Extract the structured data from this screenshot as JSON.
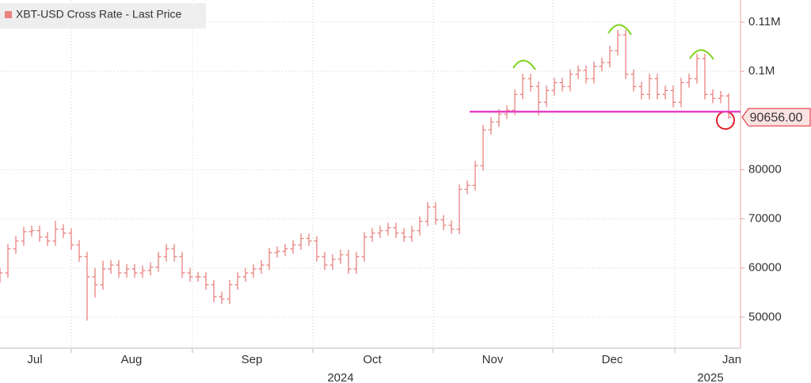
{
  "chart_data": {
    "type": "ohlc",
    "title": "XBT-USD Cross Rate - Last Price",
    "color": "#e8837f",
    "open": [
      58000,
      59000,
      63900,
      65500,
      67400,
      67600,
      66300,
      65500,
      67900,
      67100,
      64700,
      62300,
      58200,
      56600,
      59800,
      60600,
      59000,
      59800,
      59000,
      59500,
      60200,
      62300,
      63900,
      62300,
      59000,
      58200,
      58200,
      56600,
      54200,
      53700,
      56600,
      58200,
      59000,
      59800,
      60600,
      63100,
      63400,
      63900,
      64700,
      66000,
      65500,
      62300,
      60600,
      61800,
      62700,
      59800,
      62300,
      66300,
      67100,
      67600,
      68200,
      67100,
      66300,
      67600,
      69500,
      72400,
      69800,
      68700,
      67900,
      76000,
      76800,
      80800,
      88100,
      89700,
      91300,
      92100,
      95300,
      98500,
      96900,
      93700,
      96100,
      97700,
      96900,
      99400,
      100200,
      98500,
      101000,
      101800,
      104200,
      107400,
      99400,
      96900,
      95300,
      98500,
      95300,
      96100,
      93700,
      97700,
      98500,
      102600,
      95300,
      94500,
      95000
    ],
    "high": [
      60000,
      64900,
      66500,
      68400,
      68600,
      68600,
      67300,
      69600,
      68900,
      68100,
      65700,
      63300,
      60000,
      61500,
      61600,
      61600,
      60800,
      60800,
      60500,
      61200,
      63300,
      64900,
      64900,
      63300,
      60000,
      59200,
      59200,
      57600,
      55200,
      57600,
      59200,
      60000,
      60800,
      61600,
      64100,
      64400,
      64900,
      65700,
      67000,
      67000,
      66500,
      63300,
      62800,
      63700,
      63700,
      63300,
      67300,
      68100,
      68600,
      69200,
      69200,
      68100,
      68600,
      70500,
      73400,
      73400,
      70800,
      69700,
      77000,
      77800,
      81800,
      89100,
      90700,
      92300,
      93100,
      96300,
      99500,
      99500,
      97900,
      97100,
      98700,
      98700,
      100400,
      101200,
      101200,
      102000,
      102800,
      105200,
      108400,
      108400,
      100400,
      97900,
      99500,
      99500,
      97100,
      97100,
      98700,
      99500,
      103600,
      103600,
      96300,
      96000,
      95500
    ],
    "low": [
      57000,
      58000,
      62900,
      64500,
      66400,
      65300,
      64500,
      64500,
      66100,
      63700,
      61300,
      49300,
      54000,
      55600,
      58800,
      58000,
      58000,
      58000,
      58000,
      58500,
      59200,
      61300,
      61300,
      58000,
      57200,
      57200,
      55600,
      53000,
      52700,
      52700,
      55600,
      57200,
      58000,
      58800,
      59600,
      62100,
      62400,
      62900,
      63700,
      64500,
      61300,
      59600,
      59600,
      60800,
      58800,
      58800,
      61300,
      65300,
      66100,
      66600,
      66100,
      65300,
      65300,
      66600,
      68500,
      68800,
      67700,
      66900,
      66900,
      75000,
      75800,
      79800,
      87100,
      88700,
      90300,
      91100,
      94300,
      95900,
      91000,
      92700,
      95100,
      95900,
      95900,
      98400,
      97500,
      97500,
      100000,
      100800,
      103200,
      98400,
      95900,
      94300,
      94300,
      94300,
      94300,
      92700,
      92700,
      96700,
      97500,
      94300,
      93500,
      93500,
      90400
    ],
    "close": [
      59000,
      63900,
      65500,
      67400,
      67600,
      66300,
      65500,
      67900,
      67100,
      64700,
      62300,
      58200,
      56600,
      59800,
      60600,
      59000,
      59800,
      59000,
      59500,
      60200,
      62300,
      63900,
      62300,
      59000,
      58200,
      58200,
      56600,
      54200,
      53700,
      56600,
      58200,
      59000,
      59800,
      60600,
      63100,
      63400,
      63900,
      64700,
      66000,
      65500,
      62300,
      60600,
      61800,
      62700,
      59800,
      62300,
      66300,
      67100,
      67600,
      68200,
      67100,
      66300,
      67600,
      69500,
      72400,
      69800,
      68700,
      67900,
      76000,
      76800,
      80800,
      88100,
      89700,
      91300,
      92100,
      95300,
      98500,
      96900,
      93700,
      96100,
      97700,
      96900,
      99400,
      100200,
      98500,
      101000,
      101800,
      104200,
      107400,
      99400,
      96900,
      95300,
      98500,
      95300,
      96100,
      93700,
      97700,
      98500,
      102600,
      95300,
      94500,
      95000,
      90656
    ],
    "xlim": [
      0,
      93.5
    ],
    "xticks": [
      9,
      24.3,
      39.5,
      54.7,
      69.8,
      85.2
    ],
    "month_labels": [
      {
        "value": 4.4,
        "label": "Jul"
      },
      {
        "value": 16.6,
        "label": "Aug"
      },
      {
        "value": 31.8,
        "label": "Sep"
      },
      {
        "value": 47,
        "label": "Oct"
      },
      {
        "value": 62.2,
        "label": "Nov"
      },
      {
        "value": 77.3,
        "label": "Dec"
      },
      {
        "value": 92.4,
        "label": "Jan"
      }
    ],
    "year_labels": [
      {
        "value": 43,
        "label": "2024"
      },
      {
        "value": 89.7,
        "label": "2025"
      }
    ],
    "ylim": [
      43700,
      114500
    ],
    "yticks": [
      50000,
      60000,
      70000,
      80000,
      {
        "value": 100000,
        "label": "0.1M"
      },
      {
        "value": 110000,
        "label": "0.11M"
      }
    ],
    "grid": true,
    "last_price": 90656,
    "last_price_label": "90656.00",
    "support_level": 91800,
    "support_color": "#e540c4"
  }
}
